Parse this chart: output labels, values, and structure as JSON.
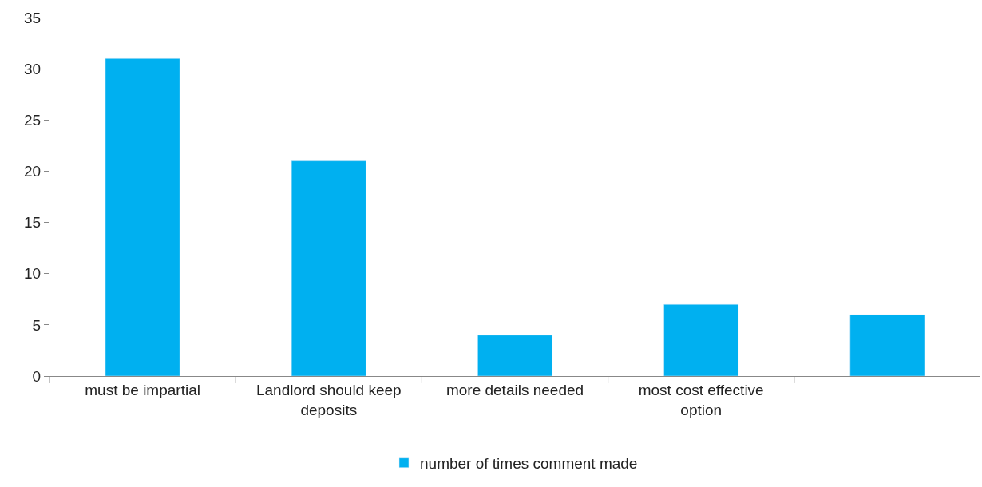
{
  "chart_data": {
    "type": "bar",
    "categories": [
      "must be impartial",
      "Landlord should keep deposits",
      "more details needed",
      "most cost effective option",
      null
    ],
    "series": [
      {
        "name": "number of times comment made",
        "color": "#00b0f0",
        "values": [
          31,
          21,
          4,
          7,
          6
        ]
      }
    ],
    "ylim": [
      0,
      35
    ],
    "yticks": [
      0,
      5,
      10,
      15,
      20,
      25,
      30,
      35
    ],
    "legend": "bottom"
  }
}
